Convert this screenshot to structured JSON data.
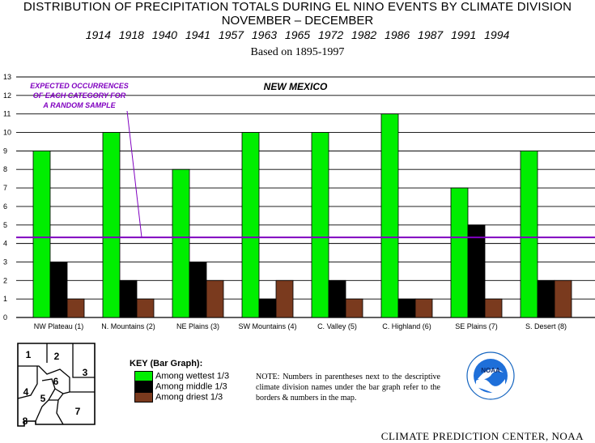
{
  "header": {
    "title_line1": "DISTRIBUTION  OF  PRECIPITATION  TOTALS  DURING  EL  NINO  EVENTS  BY  CLIMATE  DIVISION",
    "title_line2": "NOVEMBER – DECEMBER",
    "years": "1914  1918  1940  1941  1957  1963  1965  1972  1982  1986  1987  1991  1994",
    "based_on": "Based on 1895-1997"
  },
  "chart_data": {
    "type": "bar",
    "title": "NEW MEXICO",
    "categories": [
      "NW Plateau (1)",
      "N. Mountains (2)",
      "NE Plains (3)",
      "SW Mountains (4)",
      "C. Valley (5)",
      "C. Highland (6)",
      "SE Plains (7)",
      "S. Desert (8)"
    ],
    "series": [
      {
        "name": "Among wettest 1/3",
        "color": "#00ee00",
        "values": [
          9,
          10,
          8,
          10,
          10,
          11,
          7,
          9
        ]
      },
      {
        "name": "Among middle 1/3",
        "color": "#000000",
        "values": [
          3,
          2,
          3,
          1,
          2,
          1,
          5,
          2
        ]
      },
      {
        "name": "Among driest 1/3",
        "color": "#7a3a1e",
        "values": [
          1,
          1,
          2,
          2,
          1,
          1,
          1,
          2
        ]
      }
    ],
    "ylim": [
      0,
      13
    ],
    "yticks": [
      0,
      1,
      2,
      3,
      4,
      5,
      6,
      7,
      8,
      9,
      10,
      11,
      12,
      13
    ],
    "grid": true,
    "expected_value": 4.33,
    "expected_label": [
      "EXPECTED OCCURRENCES",
      "OF EACH CATEGORY FOR",
      "A RANDOM SAMPLE"
    ],
    "expected_color": "#8000c0"
  },
  "key": {
    "title": "KEY (Bar Graph):"
  },
  "note": "NOTE:  Numbers in parentheses next to the descriptive climate division names under the bar graph refer to the borders & numbers in the map.",
  "map": {
    "labels": [
      "1",
      "2",
      "3",
      "4",
      "5",
      "6",
      "7",
      "8"
    ]
  },
  "logo": {
    "text": "NOAA"
  },
  "credit": "CLIMATE PREDICTION CENTER, NOAA"
}
